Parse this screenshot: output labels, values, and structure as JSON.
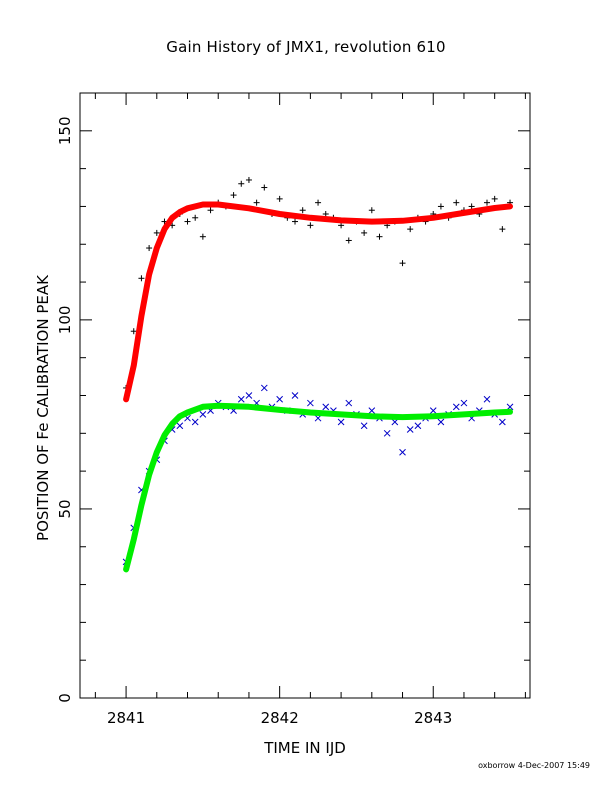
{
  "chart_data": {
    "type": "scatter",
    "title": "Gain History of JMX1, revolution 610",
    "xlabel": "TIME IN IJD",
    "ylabel": "POSITION OF Fe CALIBRATION PEAK",
    "xlim": [
      2840.7,
      2843.63
    ],
    "ylim": [
      0,
      160
    ],
    "xticks": [
      2841,
      2842,
      2843
    ],
    "yticks": [
      0,
      50,
      100,
      150
    ],
    "grid": false,
    "series": [
      {
        "marker": "plus",
        "color": "#000000",
        "x": [
          2841.0,
          2841.05,
          2841.1,
          2841.15,
          2841.2,
          2841.25,
          2841.3,
          2841.35,
          2841.4,
          2841.45,
          2841.5,
          2841.55,
          2841.6,
          2841.65,
          2841.7,
          2841.75,
          2841.8,
          2841.85,
          2841.9,
          2841.95,
          2842.0,
          2842.05,
          2842.1,
          2842.15,
          2842.2,
          2842.25,
          2842.3,
          2842.35,
          2842.4,
          2842.45,
          2842.5,
          2842.55,
          2842.6,
          2842.65,
          2842.7,
          2842.75,
          2842.8,
          2842.85,
          2842.9,
          2842.95,
          2843.0,
          2843.05,
          2843.1,
          2843.15,
          2843.2,
          2843.25,
          2843.3,
          2843.35,
          2843.4,
          2843.45,
          2843.5
        ],
        "y": [
          82,
          97,
          111,
          119,
          123,
          126,
          125,
          128,
          126,
          127,
          122,
          129,
          131,
          130,
          133,
          136,
          137,
          131,
          135,
          128,
          132,
          127,
          126,
          129,
          125,
          131,
          128,
          127,
          125,
          121,
          126,
          123,
          129,
          122,
          125,
          126,
          115,
          124,
          127,
          126,
          128,
          130,
          127,
          131,
          129,
          130,
          128,
          131,
          132,
          124,
          131
        ]
      },
      {
        "marker": "cross",
        "color": "#0000c8",
        "x": [
          2841.0,
          2841.05,
          2841.1,
          2841.15,
          2841.2,
          2841.25,
          2841.3,
          2841.35,
          2841.4,
          2841.45,
          2841.5,
          2841.55,
          2841.6,
          2841.65,
          2841.7,
          2841.75,
          2841.8,
          2841.85,
          2841.9,
          2841.95,
          2842.0,
          2842.05,
          2842.1,
          2842.15,
          2842.2,
          2842.25,
          2842.3,
          2842.35,
          2842.4,
          2842.45,
          2842.5,
          2842.55,
          2842.6,
          2842.65,
          2842.7,
          2842.75,
          2842.8,
          2842.85,
          2842.9,
          2842.95,
          2843.0,
          2843.05,
          2843.1,
          2843.15,
          2843.2,
          2843.25,
          2843.3,
          2843.35,
          2843.4,
          2843.45,
          2843.5
        ],
        "y": [
          36,
          45,
          55,
          60,
          63,
          68,
          71,
          72,
          74,
          73,
          75,
          76,
          78,
          77,
          76,
          79,
          80,
          78,
          82,
          77,
          79,
          76,
          80,
          75,
          78,
          74,
          77,
          76,
          73,
          78,
          75,
          72,
          76,
          74,
          70,
          73,
          65,
          71,
          72,
          74,
          76,
          73,
          75,
          77,
          78,
          74,
          76,
          79,
          75,
          73,
          77
        ]
      },
      {
        "type": "line",
        "color": "#ff0000",
        "x": [
          2841.0,
          2841.05,
          2841.1,
          2841.15,
          2841.2,
          2841.25,
          2841.3,
          2841.35,
          2841.4,
          2841.5,
          2841.6,
          2841.8,
          2842.0,
          2842.2,
          2842.4,
          2842.6,
          2842.8,
          2843.0,
          2843.2,
          2843.4,
          2843.5
        ],
        "y": [
          79,
          88,
          101,
          112,
          119,
          124,
          127,
          128.5,
          129.5,
          130.5,
          130.5,
          129.5,
          128,
          127,
          126.3,
          126,
          126.2,
          127,
          128.3,
          129.6,
          130
        ]
      },
      {
        "type": "line",
        "color": "#00ee00",
        "x": [
          2841.0,
          2841.05,
          2841.1,
          2841.15,
          2841.2,
          2841.25,
          2841.3,
          2841.35,
          2841.4,
          2841.5,
          2841.6,
          2841.8,
          2842.0,
          2842.2,
          2842.4,
          2842.6,
          2842.8,
          2843.0,
          2843.2,
          2843.4,
          2843.5
        ],
        "y": [
          34,
          42,
          51,
          59,
          65,
          69.5,
          72.5,
          74.5,
          75.5,
          77,
          77.3,
          77,
          76.2,
          75.5,
          75,
          74.5,
          74.3,
          74.5,
          75,
          75.5,
          75.7
        ]
      }
    ]
  },
  "footer": {
    "credit": "oxborrow  4-Dec-2007 15:49"
  }
}
